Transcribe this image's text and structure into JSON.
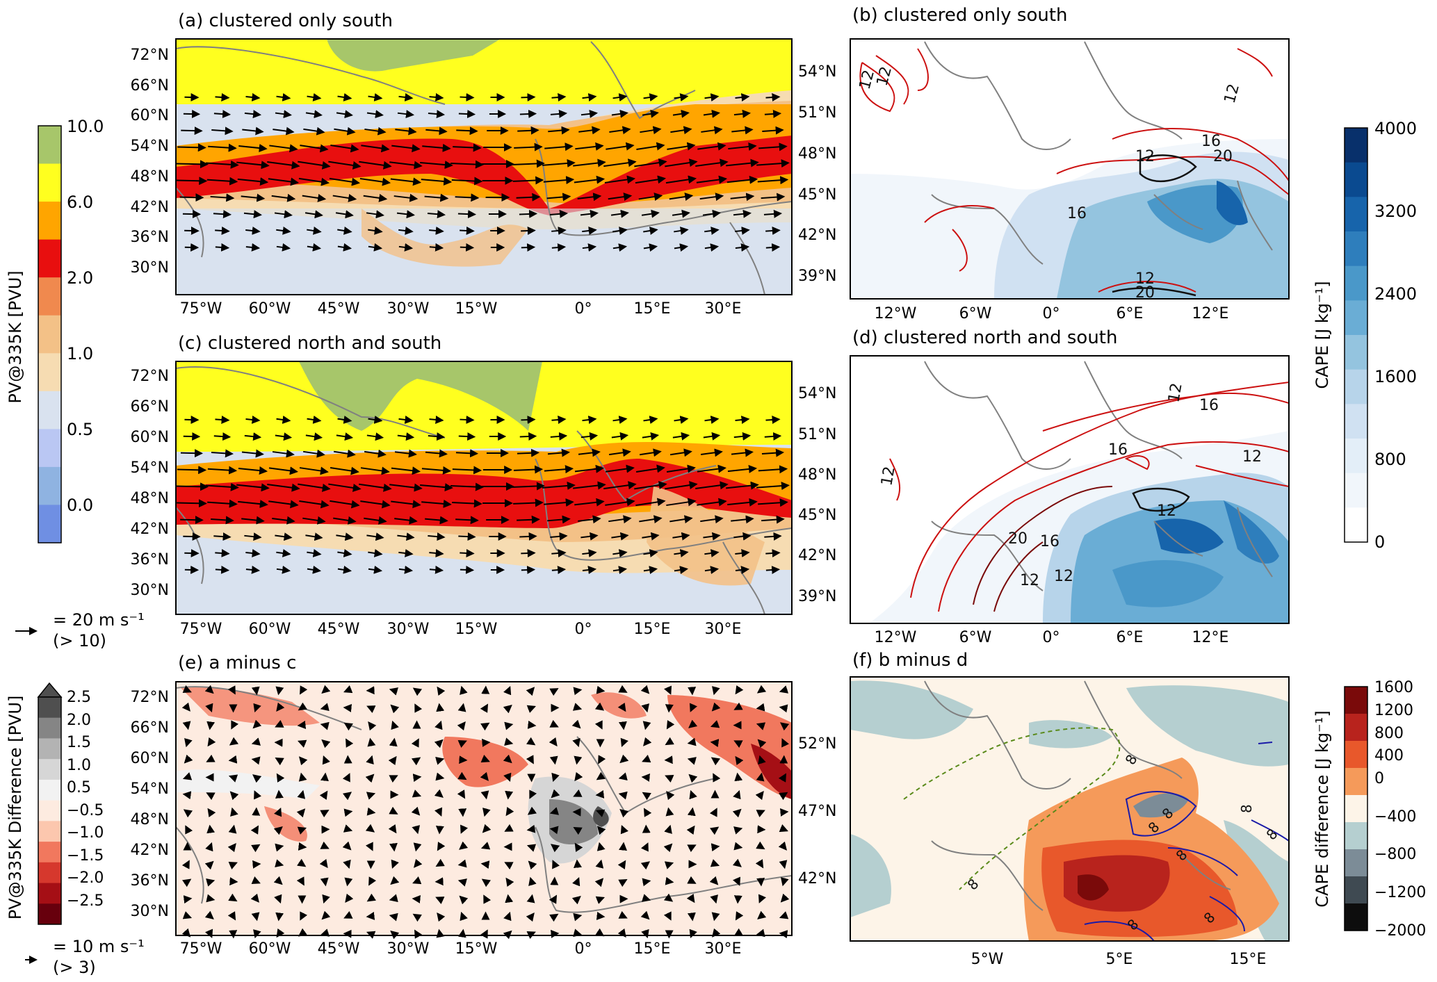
{
  "panels": {
    "a": {
      "title": "(a) clustered only south",
      "lat_ticks": [
        "72°N",
        "66°N",
        "60°N",
        "54°N",
        "48°N",
        "42°N",
        "36°N",
        "30°N"
      ],
      "lon_ticks": [
        "75°W",
        "60°W",
        "45°W",
        "30°W",
        "15°W",
        "0°",
        "15°E",
        "30°E"
      ],
      "right_ticks": [
        "54°N",
        "51°N",
        "48°N",
        "45°N",
        "42°N",
        "39°N"
      ]
    },
    "b": {
      "title": "(b) clustered only south",
      "lon_ticks": [
        "12°W",
        "6°W",
        "0°",
        "6°E",
        "12°E"
      ],
      "contour_labels": [
        "12",
        "12",
        "12",
        "16",
        "20",
        "12",
        "16",
        "12",
        "20"
      ]
    },
    "c": {
      "title": "(c) clustered north and south",
      "lat_ticks": [
        "72°N",
        "66°N",
        "60°N",
        "54°N",
        "48°N",
        "42°N",
        "36°N",
        "30°N"
      ],
      "lon_ticks": [
        "75°W",
        "60°W",
        "45°W",
        "30°W",
        "15°W",
        "0°",
        "15°E",
        "30°E"
      ],
      "right_ticks": [
        "54°N",
        "51°N",
        "48°N",
        "45°N",
        "42°N",
        "39°N"
      ]
    },
    "d": {
      "title": "(d) clustered north and south",
      "lon_ticks": [
        "12°W",
        "6°W",
        "0°",
        "6°E",
        "12°E"
      ],
      "contour_labels": [
        "12",
        "16",
        "16",
        "12",
        "12",
        "20",
        "16",
        "12",
        "12",
        "12"
      ]
    },
    "e": {
      "title": "(e) a minus c",
      "lat_ticks": [
        "72°N",
        "66°N",
        "60°N",
        "54°N",
        "48°N",
        "42°N",
        "36°N",
        "30°N"
      ],
      "lon_ticks": [
        "75°W",
        "60°W",
        "45°W",
        "30°W",
        "15°W",
        "0°",
        "15°E",
        "30°E"
      ],
      "right_ticks": [
        "52°N",
        "47°N",
        "42°N"
      ]
    },
    "f": {
      "title": "(f) b minus d",
      "lon_ticks": [
        "5°W",
        "5°E",
        "15°E"
      ],
      "contour_labels": [
        "8",
        "8",
        "8",
        "8",
        "8",
        "8",
        "8",
        "8",
        "8"
      ]
    }
  },
  "colorbars": {
    "pv": {
      "label": "PV@335K [PVU]",
      "ticks": [
        "10.0",
        "6.0",
        "2.0",
        "1.0",
        "0.5",
        "0.0"
      ],
      "colors": [
        "#a7c66a",
        "#ffff1f",
        "#ffa500",
        "#e80f0f",
        "#f0894e",
        "#f3c187",
        "#f6dcb2",
        "#d9e2ef",
        "#bac7f3",
        "#8fb3e1",
        "#6f8fe3"
      ]
    },
    "cape": {
      "label": "CAPE [J kg⁻¹]",
      "ticks": [
        "4000",
        "3200",
        "2400",
        "1600",
        "800",
        "0"
      ],
      "colors": [
        "#ffffff",
        "#f1f6fb",
        "#e3eef8",
        "#d0e1f2",
        "#b7d4ea",
        "#94c4df",
        "#6aadd5",
        "#4a98c9",
        "#2e7ebc",
        "#1764ab",
        "#0a4a90",
        "#08306b"
      ]
    },
    "pvdiff": {
      "label": "PV@335K Difference [PVU]",
      "ticks": [
        "2.5",
        "2.0",
        "1.5",
        "1.0",
        "0.5",
        "−0.5",
        "−1.0",
        "−1.5",
        "−2.0",
        "−2.5"
      ],
      "colors": [
        "#67000d",
        "#a50f15",
        "#d6382d",
        "#f1785e",
        "#fcc7ae",
        "#fdebe0",
        "#f2f2f2",
        "#d6d6d6",
        "#b3b3b3",
        "#858585",
        "#4f4f4f"
      ]
    },
    "capediff": {
      "label": "CAPE difference [J kg⁻¹]",
      "ticks": [
        "1600",
        "1200",
        "800",
        "400",
        "0",
        "−400",
        "−800",
        "−1200",
        "−2000"
      ],
      "colors": [
        "#7a0a0a",
        "#b8231d",
        "#e8582b",
        "#f59a5a",
        "#fdf4e8",
        "#b5cfd0",
        "#7c8c97",
        "#3f4a52",
        "#0d0d0d"
      ]
    }
  },
  "legend_arrows": {
    "wind1": {
      "label": "= 20 m s⁻¹",
      "sub": "(> 10)"
    },
    "wind2": {
      "label": "= 10 m s⁻¹",
      "sub": "(> 3)"
    }
  },
  "chart_data": [
    {
      "type": "heatmap",
      "panel": "a",
      "title": "(a) clustered only south",
      "variable": "PV@335K",
      "units": "PVU",
      "xlim": [
        "80°W",
        "40°E"
      ],
      "ylim": [
        "26°N",
        "74°N"
      ],
      "overlay": "wind vectors"
    },
    {
      "type": "heatmap",
      "panel": "b",
      "title": "(b) clustered only south",
      "variable": "CAPE",
      "units": "J kg⁻¹",
      "contour_levels": [
        12,
        16,
        20
      ]
    },
    {
      "type": "heatmap",
      "panel": "c",
      "title": "(c) clustered north and south",
      "variable": "PV@335K",
      "units": "PVU",
      "overlay": "wind vectors"
    },
    {
      "type": "heatmap",
      "panel": "d",
      "title": "(d) clustered north and south",
      "variable": "CAPE",
      "units": "J kg⁻¹",
      "contour_levels": [
        12,
        16,
        20
      ]
    },
    {
      "type": "heatmap",
      "panel": "e",
      "title": "(e) a minus c",
      "variable": "PV@335K Difference",
      "units": "PVU",
      "overlay": "wind vector difference"
    },
    {
      "type": "heatmap",
      "panel": "f",
      "title": "(f) b minus d",
      "variable": "CAPE difference",
      "units": "J kg⁻¹",
      "contour_levels": [
        8
      ]
    }
  ]
}
